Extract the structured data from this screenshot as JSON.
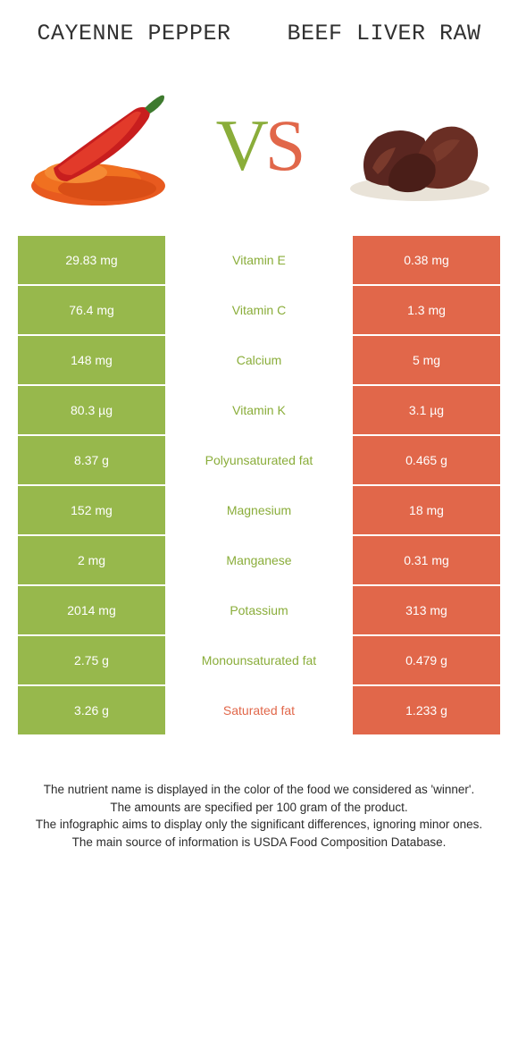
{
  "colors": {
    "left_bg": "#97b84c",
    "right_bg": "#e1674a",
    "left_text": "#8aad3a",
    "right_text": "#e1674a",
    "page_bg": "#ffffff"
  },
  "header": {
    "left_title": "CAYENNE PEPPER",
    "right_title": "BEEF LIVER RAW"
  },
  "vs": {
    "v": "V",
    "s": "S"
  },
  "rows": [
    {
      "left": "29.83 mg",
      "label": "Vitamin E",
      "right": "0.38 mg",
      "winner": "left"
    },
    {
      "left": "76.4 mg",
      "label": "Vitamin C",
      "right": "1.3 mg",
      "winner": "left"
    },
    {
      "left": "148 mg",
      "label": "Calcium",
      "right": "5 mg",
      "winner": "left"
    },
    {
      "left": "80.3 µg",
      "label": "Vitamin K",
      "right": "3.1 µg",
      "winner": "left"
    },
    {
      "left": "8.37 g",
      "label": "Polyunsaturated fat",
      "right": "0.465 g",
      "winner": "left"
    },
    {
      "left": "152 mg",
      "label": "Magnesium",
      "right": "18 mg",
      "winner": "left"
    },
    {
      "left": "2 mg",
      "label": "Manganese",
      "right": "0.31 mg",
      "winner": "left"
    },
    {
      "left": "2014 mg",
      "label": "Potassium",
      "right": "313 mg",
      "winner": "left"
    },
    {
      "left": "2.75 g",
      "label": "Monounsaturated fat",
      "right": "0.479 g",
      "winner": "left"
    },
    {
      "left": "3.26 g",
      "label": "Saturated fat",
      "right": "1.233 g",
      "winner": "right"
    }
  ],
  "footer": {
    "line1": "The nutrient name is displayed in the color of the food we considered as 'winner'.",
    "line2": "The amounts are specified per 100 gram of the product.",
    "line3": "The infographic aims to display only the significant differences, ignoring minor ones.",
    "line4": "The main source of information is USDA Food Composition Database."
  }
}
